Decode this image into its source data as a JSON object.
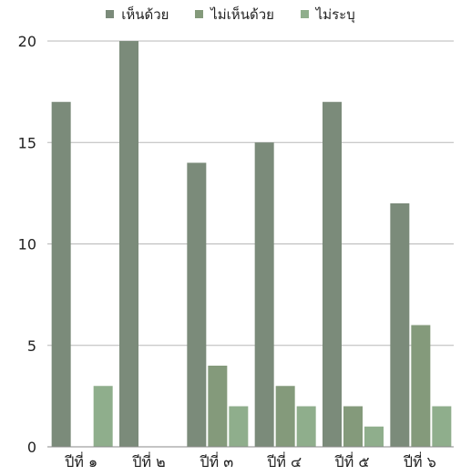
{
  "chart_data": {
    "type": "bar",
    "categories": [
      "ปีที่ ๑",
      "ปีที่ ๒",
      "ปีที่ ๓",
      "ปีที่ ๔",
      "ปีที่ ๕",
      "ปีที่ ๖"
    ],
    "series": [
      {
        "name": "เห็นด้วย",
        "color": "#7b8b7a",
        "values": [
          17,
          20,
          14,
          15,
          17,
          12
        ]
      },
      {
        "name": "ไม่เห็นด้วย",
        "color": "#849a7b",
        "values": [
          0,
          0,
          4,
          3,
          2,
          6
        ]
      },
      {
        "name": "ไม่ระบุ",
        "color": "#8fae8c",
        "values": [
          3,
          0,
          2,
          2,
          1,
          2
        ]
      }
    ],
    "ylim": [
      0,
      20
    ],
    "yticks": [
      0,
      5,
      10,
      15,
      20
    ],
    "grid": true,
    "legend_position": "top-center",
    "title": "",
    "xlabel": "",
    "ylabel": ""
  }
}
